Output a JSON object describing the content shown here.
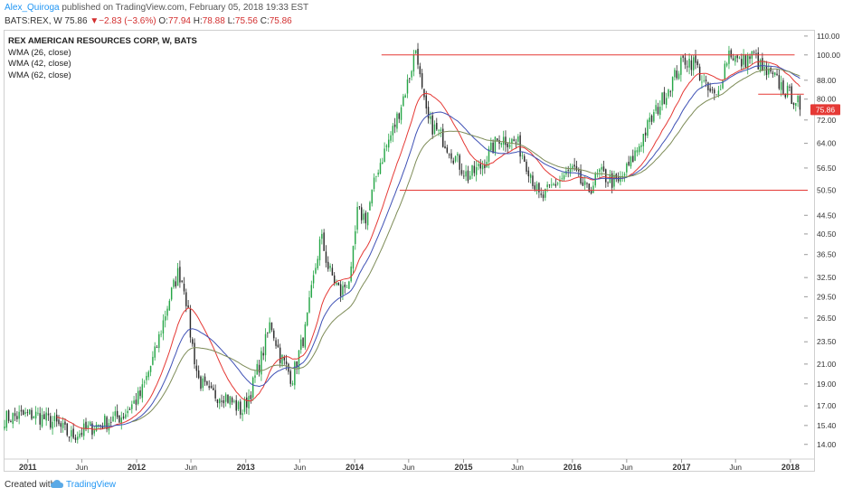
{
  "header": {
    "author": "Alex_Quiroga",
    "published_text": "published on TradingView.com, February 05, 2018 19:33 EST",
    "symbol": "BATS:REX, W",
    "last": "75.86",
    "change_arrow": "▼",
    "change": "−2.83 (−3.6%)",
    "o_label": "O:",
    "open": "77.94",
    "h_label": "H:",
    "high": "78.88",
    "l_label": "L:",
    "low": "75.56",
    "c_label": "C:",
    "close": "75.86"
  },
  "legend": {
    "title": "REX AMERICAN RESOURCES CORP, W, BATS",
    "indicators": [
      "WMA (26, close)",
      "WMA (42, close)",
      "WMA (62, close)"
    ]
  },
  "footer": {
    "created_with": "Created with",
    "brand": "TradingView"
  },
  "colors": {
    "candle_up": "#26a647",
    "candle_down": "#2a2a2a",
    "wma26": "#e53935",
    "wma42": "#3f51b5",
    "wma62": "#7d8b57",
    "hline": "#e53935",
    "price_tag": "#e53935"
  },
  "chart_data": {
    "type": "candlestick",
    "symbol": "BATS:REX",
    "interval": "W",
    "y_axis": {
      "scale": "log",
      "ylim": [
        13.0,
        113.0
      ],
      "ticks": [
        "14.00",
        "15.40",
        "17.00",
        "19.00",
        "21.00",
        "23.50",
        "26.50",
        "29.50",
        "32.50",
        "36.50",
        "40.50",
        "44.50",
        "50.50",
        "56.50",
        "64.00",
        "72.00",
        "80.00",
        "88.00",
        "100.00",
        "110.00"
      ]
    },
    "x_axis": {
      "range": [
        "2010-10-15",
        "2018-02-28"
      ],
      "ticks": [
        {
          "date": "2011-01-01",
          "label": "2011",
          "bold": true
        },
        {
          "date": "2011-07-01",
          "label": "Jun",
          "bold": false
        },
        {
          "date": "2012-01-01",
          "label": "2012",
          "bold": true
        },
        {
          "date": "2012-07-01",
          "label": "Jun",
          "bold": false
        },
        {
          "date": "2013-01-01",
          "label": "2013",
          "bold": true
        },
        {
          "date": "2013-07-01",
          "label": "Jun",
          "bold": false
        },
        {
          "date": "2014-01-01",
          "label": "2014",
          "bold": true
        },
        {
          "date": "2014-07-01",
          "label": "Jun",
          "bold": false
        },
        {
          "date": "2015-01-01",
          "label": "2015",
          "bold": true
        },
        {
          "date": "2015-07-01",
          "label": "Jun",
          "bold": false
        },
        {
          "date": "2016-01-01",
          "label": "2016",
          "bold": true
        },
        {
          "date": "2016-07-01",
          "label": "Jun",
          "bold": false
        },
        {
          "date": "2017-01-01",
          "label": "2017",
          "bold": true
        },
        {
          "date": "2017-07-01",
          "label": "Jun",
          "bold": false
        },
        {
          "date": "2018-01-01",
          "label": "2018",
          "bold": true
        }
      ]
    },
    "last_price_label": "75.86",
    "price_anchors": [
      [
        "2010-10-15",
        16.0
      ],
      [
        "2011-01-20",
        16.3
      ],
      [
        "2011-04-01",
        15.6
      ],
      [
        "2011-05-25",
        14.6
      ],
      [
        "2011-08-20",
        15.4
      ],
      [
        "2011-11-15",
        16.2
      ],
      [
        "2012-01-15",
        18.0
      ],
      [
        "2012-03-01",
        22.0
      ],
      [
        "2012-04-15",
        28.5
      ],
      [
        "2012-05-20",
        33.5
      ],
      [
        "2012-06-10",
        31.0
      ],
      [
        "2012-07-01",
        24.0
      ],
      [
        "2012-07-25",
        19.5
      ],
      [
        "2012-09-01",
        18.0
      ],
      [
        "2012-10-20",
        18.0
      ],
      [
        "2012-12-20",
        16.5
      ],
      [
        "2013-01-20",
        18.5
      ],
      [
        "2013-02-25",
        22.0
      ],
      [
        "2013-03-25",
        26.0
      ],
      [
        "2013-04-25",
        22.0
      ],
      [
        "2013-06-05",
        19.5
      ],
      [
        "2013-07-20",
        25.0
      ],
      [
        "2013-08-25",
        35.0
      ],
      [
        "2013-09-10",
        40.0
      ],
      [
        "2013-10-05",
        34.0
      ],
      [
        "2013-11-15",
        30.0
      ],
      [
        "2013-12-20",
        33.0
      ],
      [
        "2014-01-10",
        45.0
      ],
      [
        "2014-02-10",
        44.0
      ],
      [
        "2014-03-20",
        56.5
      ],
      [
        "2014-05-15",
        70.0
      ],
      [
        "2014-06-30",
        88.0
      ],
      [
        "2014-07-28",
        105.0
      ],
      [
        "2014-08-10",
        86.0
      ],
      [
        "2014-09-01",
        72.0
      ],
      [
        "2014-10-20",
        66.0
      ],
      [
        "2014-12-01",
        60.0
      ],
      [
        "2015-01-15",
        54.0
      ],
      [
        "2015-03-01",
        57.0
      ],
      [
        "2015-05-01",
        66.0
      ],
      [
        "2015-07-01",
        64.0
      ],
      [
        "2015-08-10",
        56.0
      ],
      [
        "2015-09-15",
        48.0
      ],
      [
        "2015-11-01",
        52.0
      ],
      [
        "2016-01-01",
        56.0
      ],
      [
        "2016-02-20",
        50.0
      ],
      [
        "2016-04-01",
        55.0
      ],
      [
        "2016-06-01",
        52.0
      ],
      [
        "2016-07-15",
        58.0
      ],
      [
        "2016-09-01",
        68.0
      ],
      [
        "2016-11-15",
        84.0
      ],
      [
        "2017-01-10",
        98.0
      ],
      [
        "2017-02-15",
        96.0
      ],
      [
        "2017-03-25",
        84.0
      ],
      [
        "2017-04-30",
        80.0
      ],
      [
        "2017-05-20",
        92.0
      ],
      [
        "2017-06-10",
        102.0
      ],
      [
        "2017-07-15",
        96.0
      ],
      [
        "2017-09-01",
        100.0
      ],
      [
        "2017-10-01",
        92.0
      ],
      [
        "2017-11-15",
        88.0
      ],
      [
        "2017-12-25",
        82.0
      ],
      [
        "2018-01-20",
        80.0
      ],
      [
        "2018-02-05",
        75.86
      ]
    ],
    "series": [
      {
        "name": "WMA (26, close)",
        "period": 26
      },
      {
        "name": "WMA (42, close)",
        "period": 42
      },
      {
        "name": "WMA (62, close)",
        "period": 62
      }
    ],
    "horizontal_lines": [
      {
        "price": 100.0,
        "from": "2014-04-01",
        "to": "2018-01-15"
      },
      {
        "price": 50.5,
        "from": "2014-06-01",
        "to": "2018-02-28"
      },
      {
        "price": 82.0,
        "from": "2017-09-15",
        "to": "2018-02-15"
      }
    ]
  }
}
